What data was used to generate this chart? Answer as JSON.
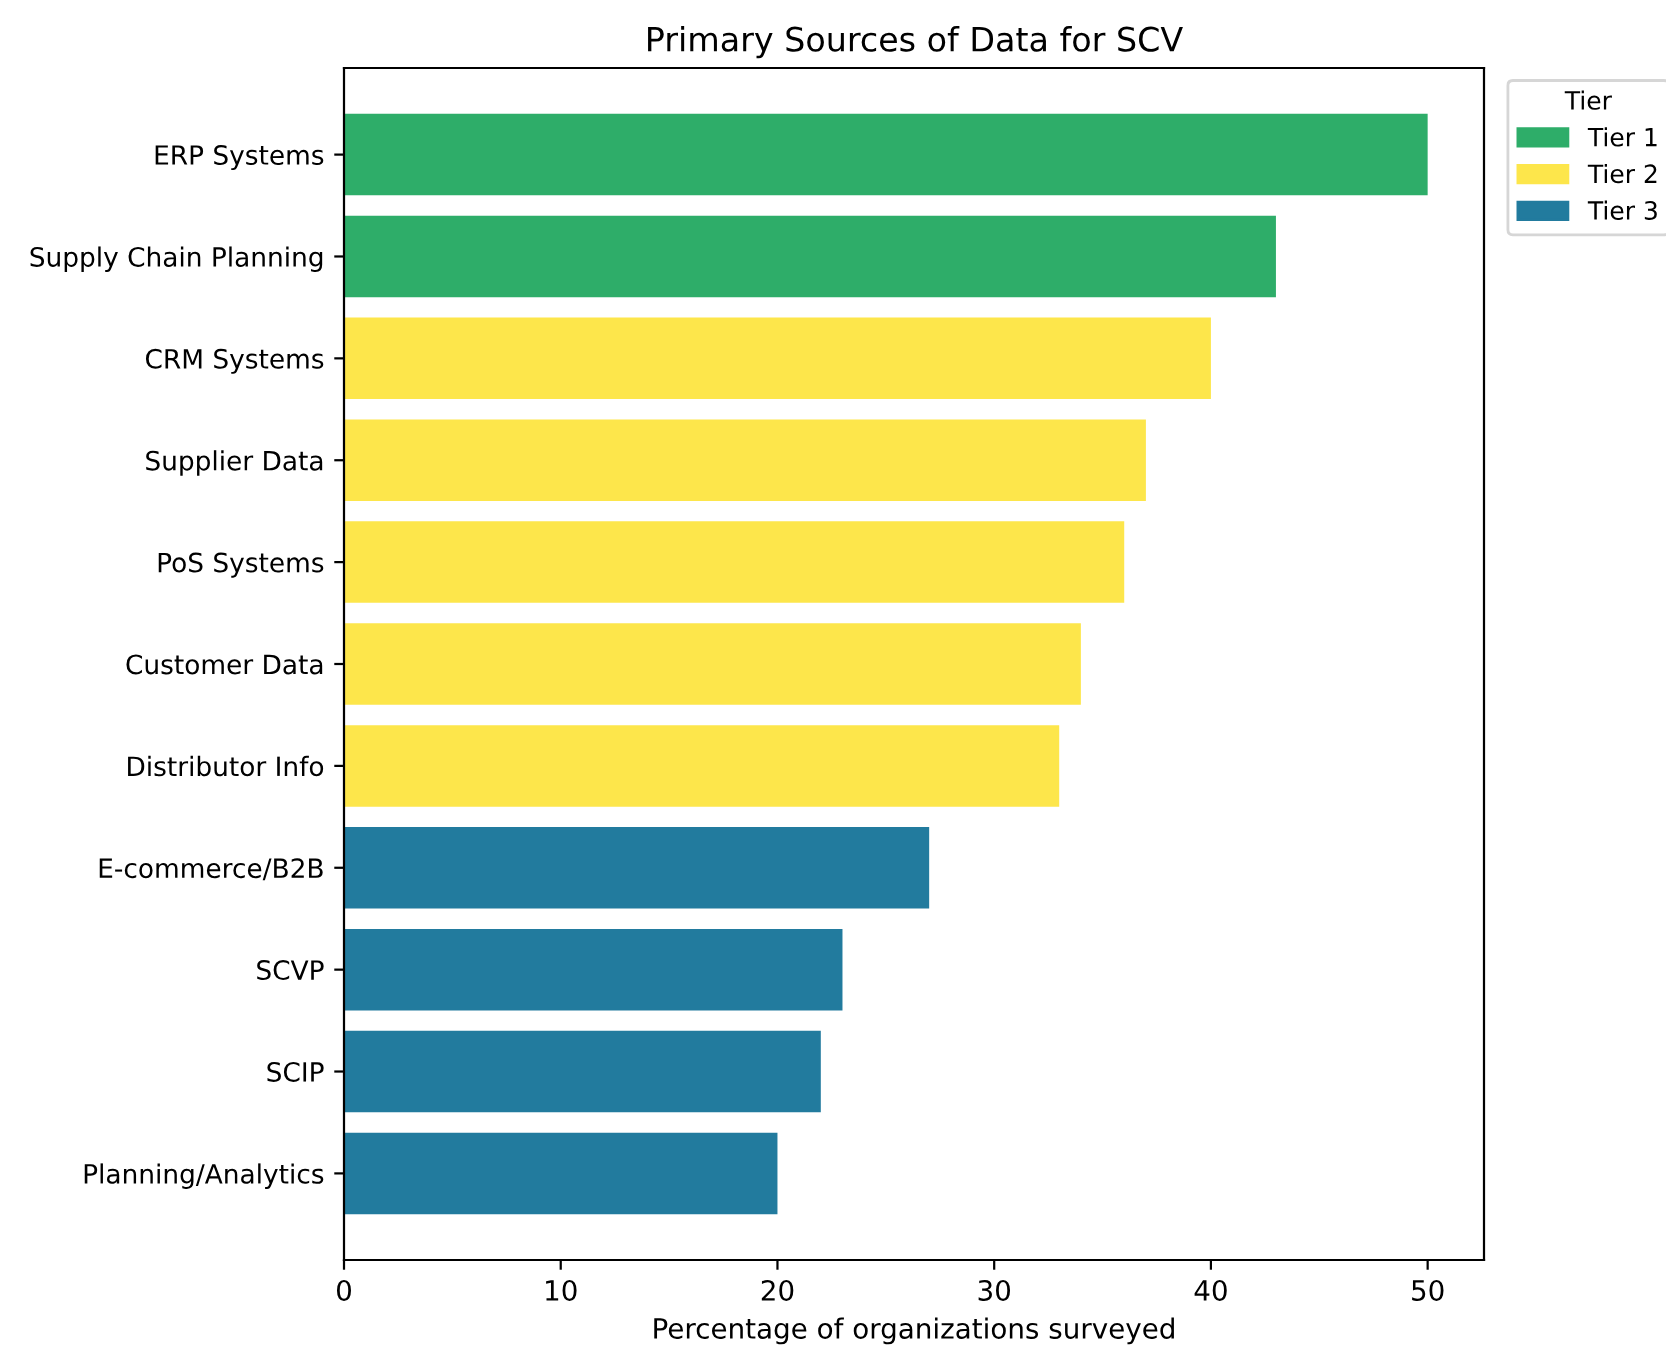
{
  "chart_data": {
    "type": "bar",
    "orientation": "horizontal",
    "title": "Primary Sources of Data for SCV",
    "xlabel": "Percentage of organizations surveyed",
    "legend_title": "Tier",
    "legend": "top right",
    "grid": false,
    "categories": [
      "ERP Systems",
      "Supply Chain Planning",
      "CRM Systems",
      "Supplier Data",
      "PoS Systems",
      "Customer Data",
      "Distributor Info",
      "E-commerce/B2B",
      "SCVP",
      "SCIP",
      "Planning/Analytics"
    ],
    "series": [
      {
        "name": "Tier 1",
        "color": "#2ead69",
        "values": [
          50,
          43,
          null,
          null,
          null,
          null,
          null,
          null,
          null,
          null,
          null
        ]
      },
      {
        "name": "Tier 2",
        "color": "#fde64b",
        "values": [
          null,
          null,
          40,
          37,
          36,
          34,
          33,
          null,
          null,
          null,
          null
        ]
      },
      {
        "name": "Tier 3",
        "color": "#227b9e",
        "values": [
          null,
          null,
          null,
          null,
          null,
          null,
          null,
          27,
          23,
          22,
          20
        ]
      }
    ],
    "xlim": [
      0,
      52.6
    ],
    "xticks": [
      0,
      10,
      20,
      30,
      40,
      50
    ]
  }
}
